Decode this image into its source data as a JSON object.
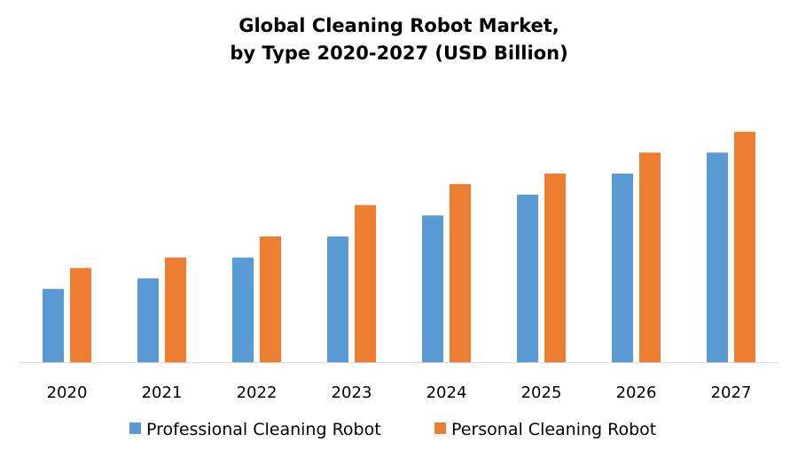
{
  "chart_data": {
    "type": "bar",
    "title_lines": [
      "Global Cleaning Robot Market,",
      "by Type 2020-2027 (USD Billion)"
    ],
    "xlabel": "",
    "ylabel": "",
    "categories": [
      "2020",
      "2021",
      "2022",
      "2023",
      "2024",
      "2025",
      "2026",
      "2027"
    ],
    "series": [
      {
        "name": "Professional Cleaning Robot",
        "color": "#5B9BD5",
        "values": [
          3.5,
          4.0,
          5.0,
          6.0,
          7.0,
          8.0,
          9.0,
          10.0
        ]
      },
      {
        "name": "Personal Cleaning Robot",
        "color": "#ED7D31",
        "values": [
          4.5,
          5.0,
          6.0,
          7.5,
          8.5,
          9.0,
          10.0,
          11.0
        ]
      }
    ],
    "ylim": [
      0,
      12
    ],
    "grid": false,
    "legend_position": "bottom",
    "axis_color": "#D9D9D9"
  }
}
